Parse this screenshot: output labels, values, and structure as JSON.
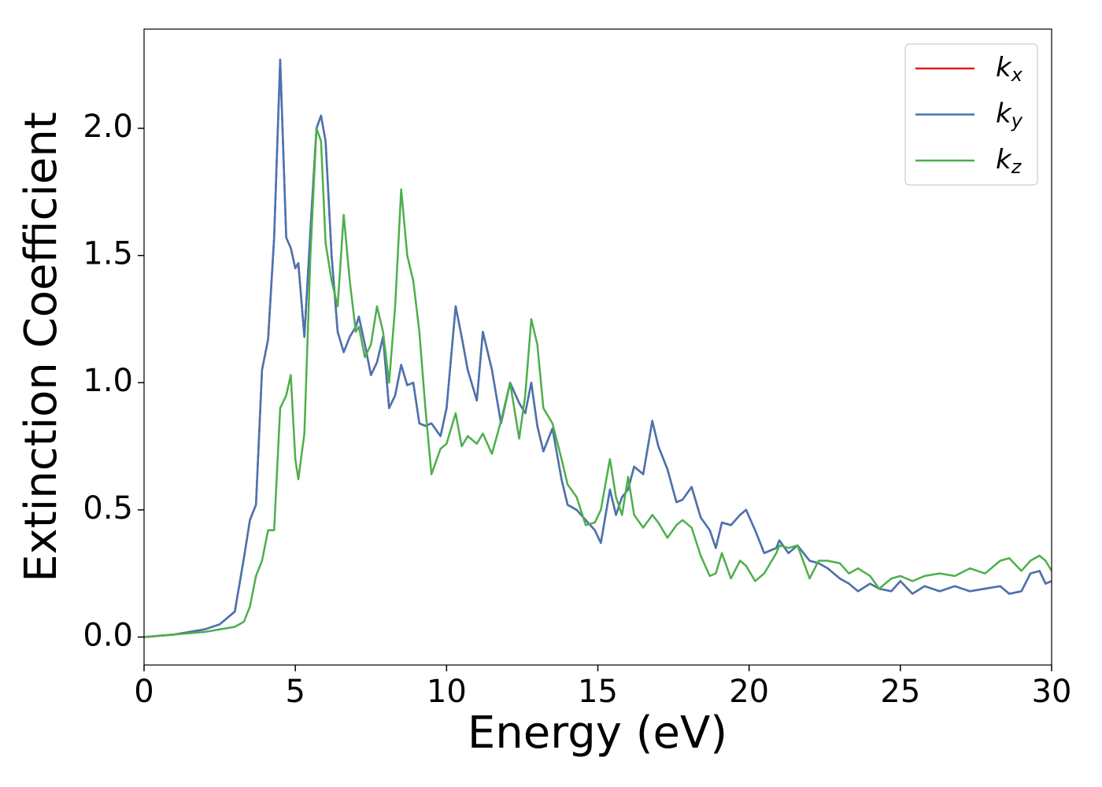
{
  "chart_data": {
    "type": "line",
    "x_label": "Energy (eV)",
    "y_label": "Extinction Coefficient",
    "x": [
      0,
      1,
      2,
      2.5,
      3,
      3.3,
      3.5,
      3.7,
      3.9,
      4.1,
      4.3,
      4.5,
      4.7,
      4.85,
      5,
      5.1,
      5.3,
      5.5,
      5.7,
      5.85,
      6,
      6.2,
      6.4,
      6.6,
      6.8,
      7,
      7.1,
      7.3,
      7.5,
      7.7,
      7.9,
      8.1,
      8.3,
      8.5,
      8.7,
      8.9,
      9.1,
      9.3,
      9.5,
      9.8,
      10,
      10.3,
      10.5,
      10.7,
      11,
      11.2,
      11.5,
      11.8,
      12.1,
      12.4,
      12.6,
      12.8,
      13,
      13.2,
      13.5,
      13.8,
      14,
      14.3,
      14.6,
      14.9,
      15.1,
      15.4,
      15.6,
      15.8,
      16,
      16.2,
      16.5,
      16.8,
      17,
      17.3,
      17.6,
      17.8,
      18.1,
      18.4,
      18.7,
      18.9,
      19.1,
      19.4,
      19.7,
      19.9,
      20.2,
      20.5,
      20.9,
      21,
      21.3,
      21.6,
      22,
      22.3,
      22.6,
      23,
      23.3,
      23.6,
      24,
      24.3,
      24.7,
      25,
      25.4,
      25.8,
      26.3,
      26.8,
      27.3,
      27.8,
      28.3,
      28.6,
      29,
      29.3,
      29.6,
      29.8,
      30
    ],
    "series": [
      {
        "name": "kx",
        "color": "#e41a1c",
        "values": [
          0,
          0.01,
          0.03,
          0.05,
          0.1,
          0.31,
          0.46,
          0.52,
          1.05,
          1.17,
          1.57,
          2.27,
          1.57,
          1.53,
          1.45,
          1.47,
          1.18,
          1.6,
          2.0,
          2.05,
          1.95,
          1.5,
          1.2,
          1.12,
          1.18,
          1.22,
          1.26,
          1.15,
          1.03,
          1.08,
          1.18,
          0.9,
          0.95,
          1.07,
          0.99,
          1.0,
          0.84,
          0.83,
          0.84,
          0.79,
          0.9,
          1.3,
          1.18,
          1.05,
          0.93,
          1.2,
          1.05,
          0.84,
          1.0,
          0.92,
          0.88,
          1.0,
          0.83,
          0.73,
          0.82,
          0.62,
          0.52,
          0.5,
          0.46,
          0.42,
          0.37,
          0.58,
          0.48,
          0.55,
          0.58,
          0.67,
          0.64,
          0.85,
          0.75,
          0.66,
          0.53,
          0.54,
          0.59,
          0.47,
          0.42,
          0.35,
          0.45,
          0.44,
          0.48,
          0.5,
          0.42,
          0.33,
          0.35,
          0.38,
          0.33,
          0.36,
          0.3,
          0.29,
          0.27,
          0.23,
          0.21,
          0.18,
          0.21,
          0.19,
          0.18,
          0.22,
          0.17,
          0.2,
          0.18,
          0.2,
          0.18,
          0.19,
          0.2,
          0.17,
          0.18,
          0.25,
          0.26,
          0.21,
          0.22
        ]
      },
      {
        "name": "ky",
        "color": "#4575b4",
        "values": [
          0,
          0.01,
          0.03,
          0.05,
          0.1,
          0.31,
          0.46,
          0.52,
          1.05,
          1.17,
          1.57,
          2.27,
          1.57,
          1.53,
          1.45,
          1.47,
          1.18,
          1.6,
          2.0,
          2.05,
          1.95,
          1.5,
          1.2,
          1.12,
          1.18,
          1.22,
          1.26,
          1.15,
          1.03,
          1.08,
          1.18,
          0.9,
          0.95,
          1.07,
          0.99,
          1.0,
          0.84,
          0.83,
          0.84,
          0.79,
          0.9,
          1.3,
          1.18,
          1.05,
          0.93,
          1.2,
          1.05,
          0.84,
          1.0,
          0.92,
          0.88,
          1.0,
          0.83,
          0.73,
          0.82,
          0.62,
          0.52,
          0.5,
          0.46,
          0.42,
          0.37,
          0.58,
          0.48,
          0.55,
          0.58,
          0.67,
          0.64,
          0.85,
          0.75,
          0.66,
          0.53,
          0.54,
          0.59,
          0.47,
          0.42,
          0.35,
          0.45,
          0.44,
          0.48,
          0.5,
          0.42,
          0.33,
          0.35,
          0.38,
          0.33,
          0.36,
          0.3,
          0.29,
          0.27,
          0.23,
          0.21,
          0.18,
          0.21,
          0.19,
          0.18,
          0.22,
          0.17,
          0.2,
          0.18,
          0.2,
          0.18,
          0.19,
          0.2,
          0.17,
          0.18,
          0.25,
          0.26,
          0.21,
          0.22
        ]
      },
      {
        "name": "kz",
        "color": "#4daf4a",
        "values": [
          0,
          0.01,
          0.02,
          0.03,
          0.04,
          0.06,
          0.12,
          0.24,
          0.3,
          0.42,
          0.42,
          0.9,
          0.95,
          1.03,
          0.7,
          0.62,
          0.8,
          1.5,
          2.0,
          1.95,
          1.55,
          1.4,
          1.3,
          1.66,
          1.4,
          1.2,
          1.22,
          1.1,
          1.15,
          1.3,
          1.2,
          1.0,
          1.3,
          1.76,
          1.5,
          1.4,
          1.2,
          0.9,
          0.64,
          0.74,
          0.76,
          0.88,
          0.75,
          0.79,
          0.76,
          0.8,
          0.72,
          0.85,
          1.0,
          0.78,
          0.95,
          1.25,
          1.15,
          0.9,
          0.84,
          0.7,
          0.6,
          0.55,
          0.44,
          0.45,
          0.5,
          0.7,
          0.55,
          0.48,
          0.63,
          0.48,
          0.43,
          0.48,
          0.45,
          0.39,
          0.44,
          0.46,
          0.43,
          0.32,
          0.24,
          0.25,
          0.33,
          0.23,
          0.3,
          0.28,
          0.22,
          0.25,
          0.33,
          0.36,
          0.35,
          0.36,
          0.23,
          0.3,
          0.3,
          0.29,
          0.25,
          0.27,
          0.24,
          0.19,
          0.23,
          0.24,
          0.22,
          0.24,
          0.25,
          0.24,
          0.27,
          0.25,
          0.3,
          0.31,
          0.26,
          0.3,
          0.32,
          0.3,
          0.26
        ]
      }
    ],
    "xlim": [
      0,
      30
    ],
    "xticks": [
      0,
      5,
      10,
      15,
      20,
      25,
      30
    ],
    "ylim": [
      -0.11,
      2.39
    ],
    "yticks": [
      {
        "value": 0,
        "label": "0.0"
      },
      0.5,
      {
        "value": 1,
        "label": "1.0"
      },
      1.5,
      {
        "value": 2,
        "label": "2.0"
      }
    ],
    "grid": false,
    "legend": "upper right"
  }
}
